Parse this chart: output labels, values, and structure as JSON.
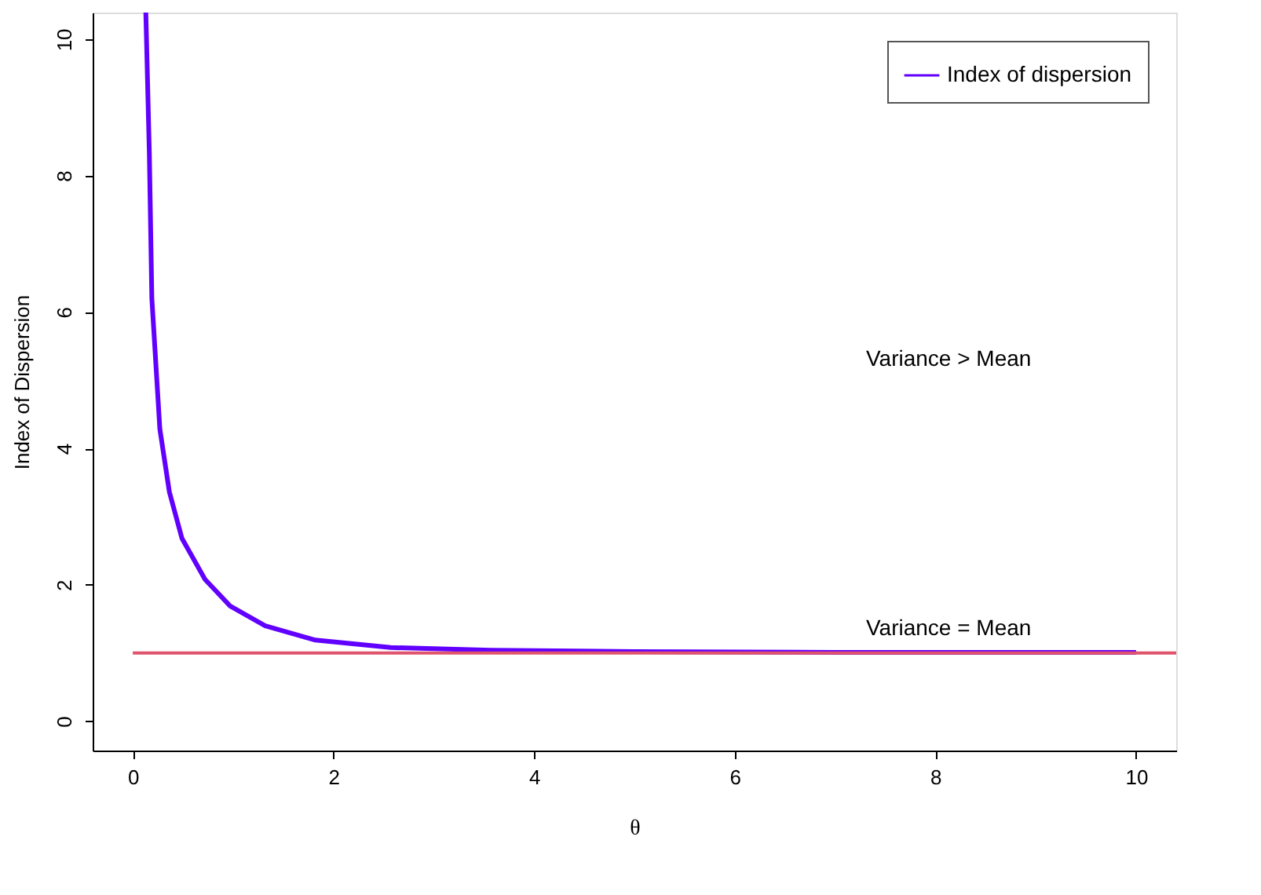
{
  "chart_data": {
    "type": "line",
    "xlabel": "θ",
    "ylabel": "Index of Dispersion",
    "xlim": [
      -0.4,
      10.4
    ],
    "ylim": [
      -0.43,
      10.39
    ],
    "xticks": [
      0,
      2,
      4,
      6,
      8,
      10
    ],
    "yticks": [
      0,
      2,
      4,
      6,
      8,
      10
    ],
    "grid": false,
    "legend": "top right",
    "marker": "none",
    "line_style": "solid",
    "series": [
      {
        "name": "Index of dispersion",
        "color": "#6100ff",
        "x": [
          0.13,
          0.165,
          0.19,
          0.27,
          0.365,
          0.49,
          0.72,
          0.97,
          1.32,
          1.82,
          2.57,
          3.57,
          5,
          7,
          10
        ],
        "values": [
          10.39,
          8.33,
          6.2,
          4.28,
          3.36,
          2.68,
          2.08,
          1.69,
          1.4,
          1.19,
          1.08,
          1.04,
          1.02,
          1.01,
          1.01
        ]
      },
      {
        "color": "#df536b",
        "x": [
          0,
          10.4
        ],
        "values": [
          1,
          1
        ]
      }
    ],
    "annotations": [
      "Variance > Mean",
      "Variance = Mean"
    ]
  }
}
